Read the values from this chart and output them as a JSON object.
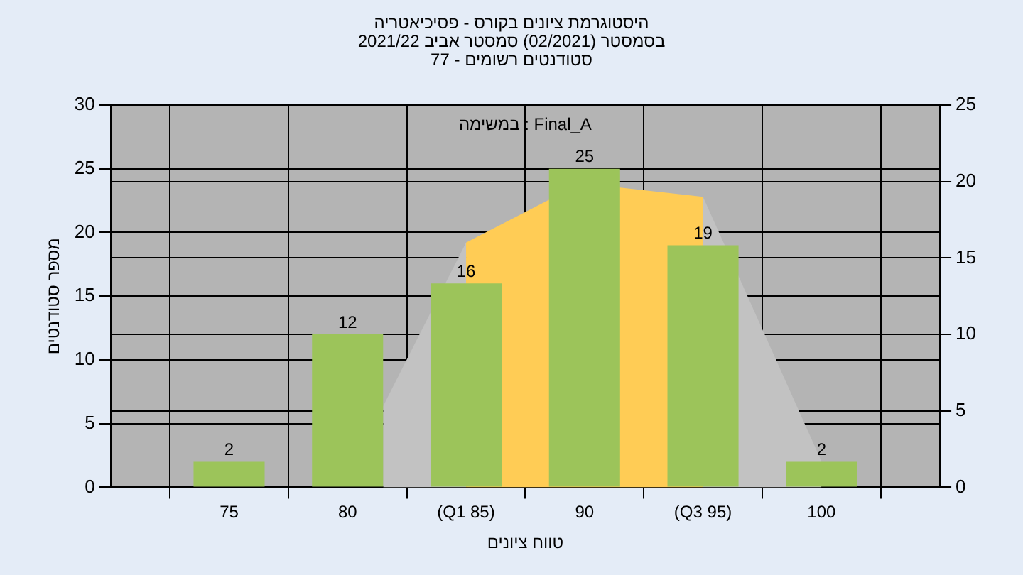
{
  "chart_data": {
    "type": "bar",
    "title": "היסטוגרמת ציונים בקורס - פסיכיאטריה",
    "subtitle": "בסמסטר (02/2021) סמסטר אביב 2021/22\nסטודנטים רשומים - 77",
    "xlabel": "טווח ציונים",
    "ylabel": "מספר סטודנטים",
    "annotations": [
      "במשימה : Final_A"
    ],
    "x": [
      75,
      80,
      85,
      90,
      95,
      100
    ],
    "series": [
      {
        "type": "area",
        "axis": "y2",
        "color": "#c2c2c2",
        "x": [
          81.5,
          85
        ],
        "values": [
          5.3,
          16
        ]
      },
      {
        "type": "area",
        "axis": "y2",
        "color": "#c2c2c2",
        "x": [
          95,
          100
        ],
        "values": [
          19,
          1.7
        ]
      },
      {
        "type": "area",
        "axis": "y2",
        "color": "#ffcc55",
        "x": [
          85,
          88.5,
          91.5,
          95
        ],
        "values": [
          16,
          18.8,
          19.6,
          19
        ]
      },
      {
        "color": "#9cc45a",
        "values": [
          2,
          12,
          16,
          25,
          19,
          2
        ],
        "value_labels": [
          "2",
          "12",
          "16",
          "25",
          "19",
          "2"
        ]
      }
    ],
    "xlim": [
      70,
      105
    ],
    "xticks": [
      75,
      80,
      {
        "value": 85,
        "label": "(Q1 85)"
      },
      90,
      {
        "value": 95,
        "label": "(Q3 95)"
      },
      100
    ],
    "ylim": [
      0,
      30
    ],
    "yticks": [
      0,
      5,
      10,
      15,
      20,
      25,
      30
    ],
    "y2lim": [
      0,
      25
    ],
    "y2ticks": [
      0,
      5,
      10,
      15,
      20,
      25
    ],
    "grid": true
  }
}
